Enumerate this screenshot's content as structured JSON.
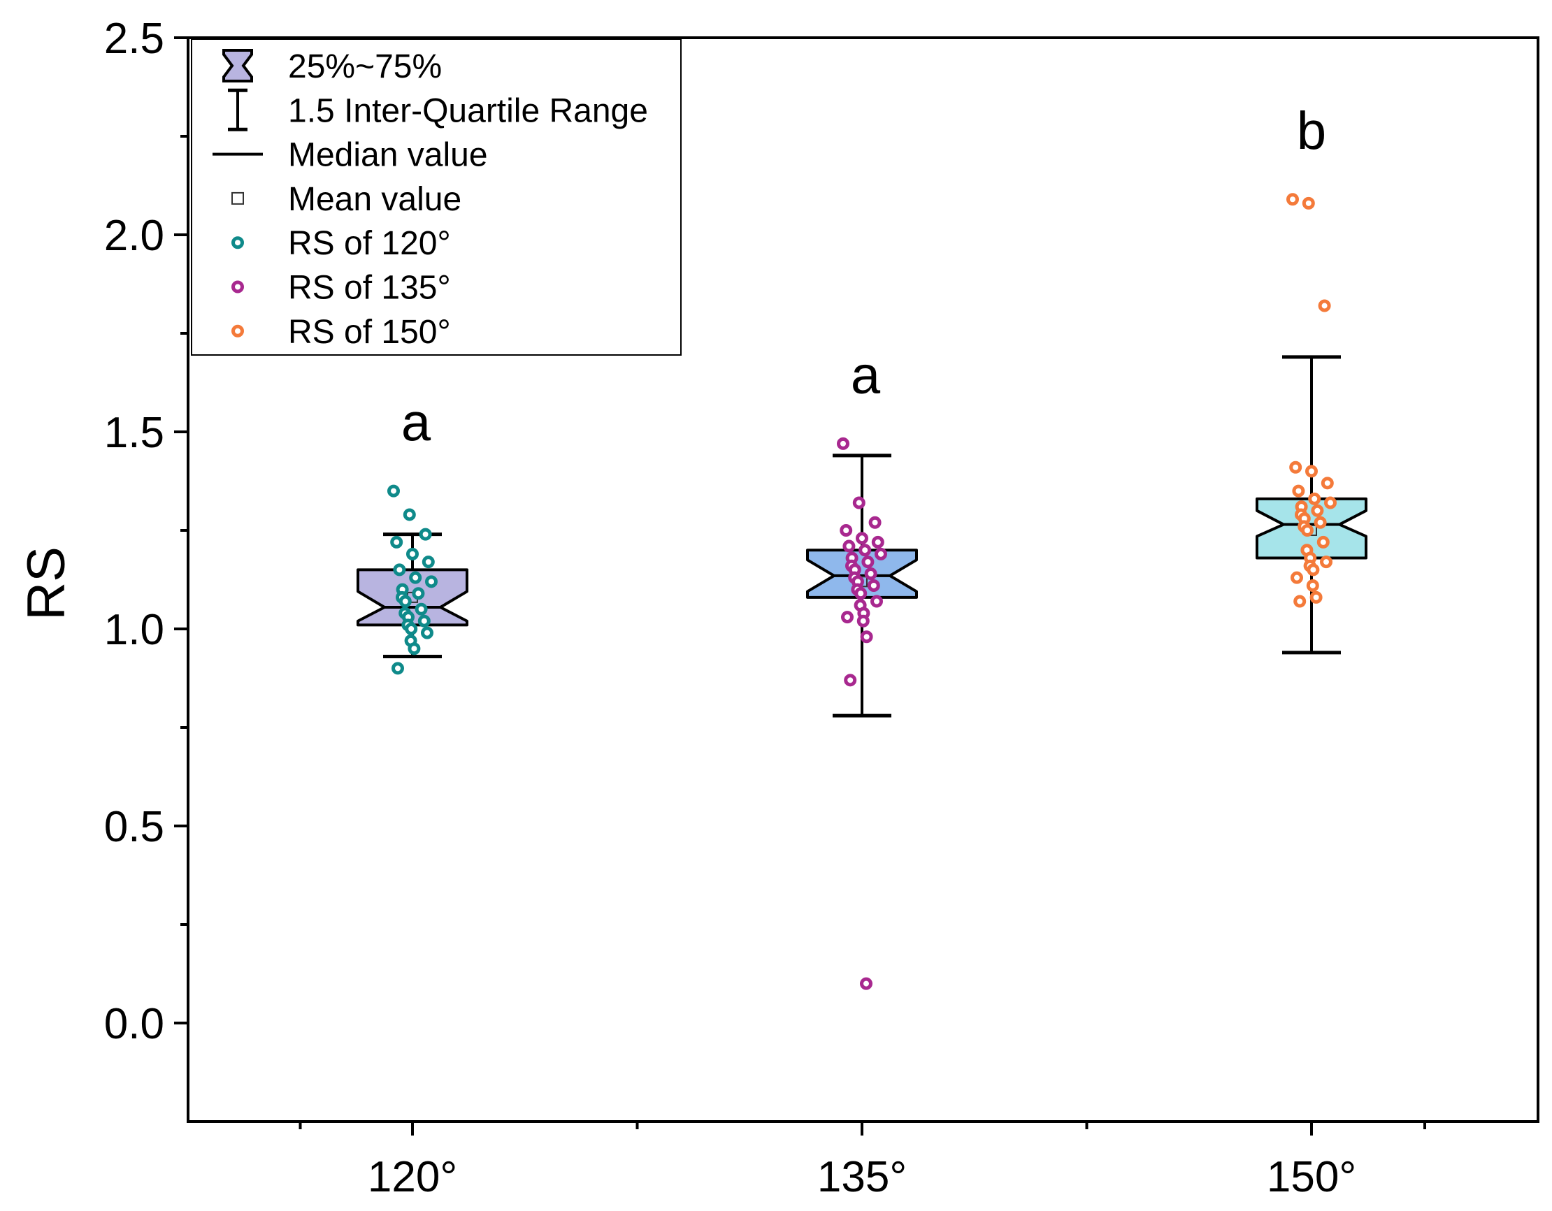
{
  "chart_data": {
    "type": "box",
    "ylabel": "RS",
    "xlabel": "",
    "ylim": [
      -0.25,
      2.5
    ],
    "yticks": [
      "0.0",
      "0.5",
      "1.0",
      "1.5",
      "2.0",
      "2.5"
    ],
    "categories": [
      "120°",
      "135°",
      "150°"
    ],
    "legend": {
      "position": "top-left",
      "items": [
        {
          "symbol": "notched-box",
          "label": "25%~75%"
        },
        {
          "symbol": "whisker",
          "label": "1.5 Inter-Quartile Range"
        },
        {
          "symbol": "line",
          "label": "Median value"
        },
        {
          "symbol": "square",
          "label": "Mean value"
        },
        {
          "symbol": "circle",
          "label": "RS of 120°",
          "color": "#0f8a8a"
        },
        {
          "symbol": "circle",
          "label": "RS of 135°",
          "color": "#a8288f"
        },
        {
          "symbol": "circle",
          "label": "RS of 150°",
          "color": "#f47a3a"
        }
      ]
    },
    "series": [
      {
        "name": "RS of 120°",
        "category": "120°",
        "box_color": "#b8b4e0",
        "point_color": "#0f8a8a",
        "q1": 1.01,
        "median": 1.055,
        "q3": 1.15,
        "mean": 1.08,
        "notch_low": 1.02,
        "notch_high": 1.095,
        "whisker_low": 0.93,
        "whisker_high": 1.24,
        "significance": "a",
        "points": [
          1.35,
          1.29,
          1.24,
          1.22,
          1.19,
          1.17,
          1.15,
          1.13,
          1.12,
          1.1,
          1.09,
          1.08,
          1.07,
          1.05,
          1.04,
          1.03,
          1.02,
          1.01,
          1.0,
          0.99,
          0.97,
          0.95,
          0.9
        ]
      },
      {
        "name": "RS of 135°",
        "category": "135°",
        "box_color": "#8fb8ec",
        "point_color": "#a8288f",
        "q1": 1.08,
        "median": 1.135,
        "q3": 1.2,
        "mean": 1.12,
        "notch_low": 1.095,
        "notch_high": 1.175,
        "whisker_low": 0.78,
        "whisker_high": 1.44,
        "significance": "a",
        "points": [
          1.47,
          1.32,
          1.27,
          1.25,
          1.23,
          1.22,
          1.21,
          1.2,
          1.19,
          1.18,
          1.17,
          1.16,
          1.15,
          1.14,
          1.13,
          1.12,
          1.11,
          1.1,
          1.09,
          1.07,
          1.06,
          1.04,
          1.03,
          1.02,
          0.98,
          0.87,
          0.1
        ]
      },
      {
        "name": "RS of 150°",
        "category": "150°",
        "box_color": "#a6e4ea",
        "point_color": "#f47a3a",
        "q1": 1.18,
        "median": 1.265,
        "q3": 1.33,
        "mean": 1.25,
        "notch_low": 1.235,
        "notch_high": 1.3,
        "whisker_low": 0.94,
        "whisker_high": 1.69,
        "significance": "b",
        "points": [
          2.09,
          2.08,
          1.82,
          1.41,
          1.4,
          1.37,
          1.35,
          1.33,
          1.32,
          1.31,
          1.3,
          1.29,
          1.28,
          1.27,
          1.26,
          1.25,
          1.22,
          1.2,
          1.18,
          1.17,
          1.16,
          1.15,
          1.13,
          1.11,
          1.08,
          1.07
        ]
      }
    ]
  }
}
